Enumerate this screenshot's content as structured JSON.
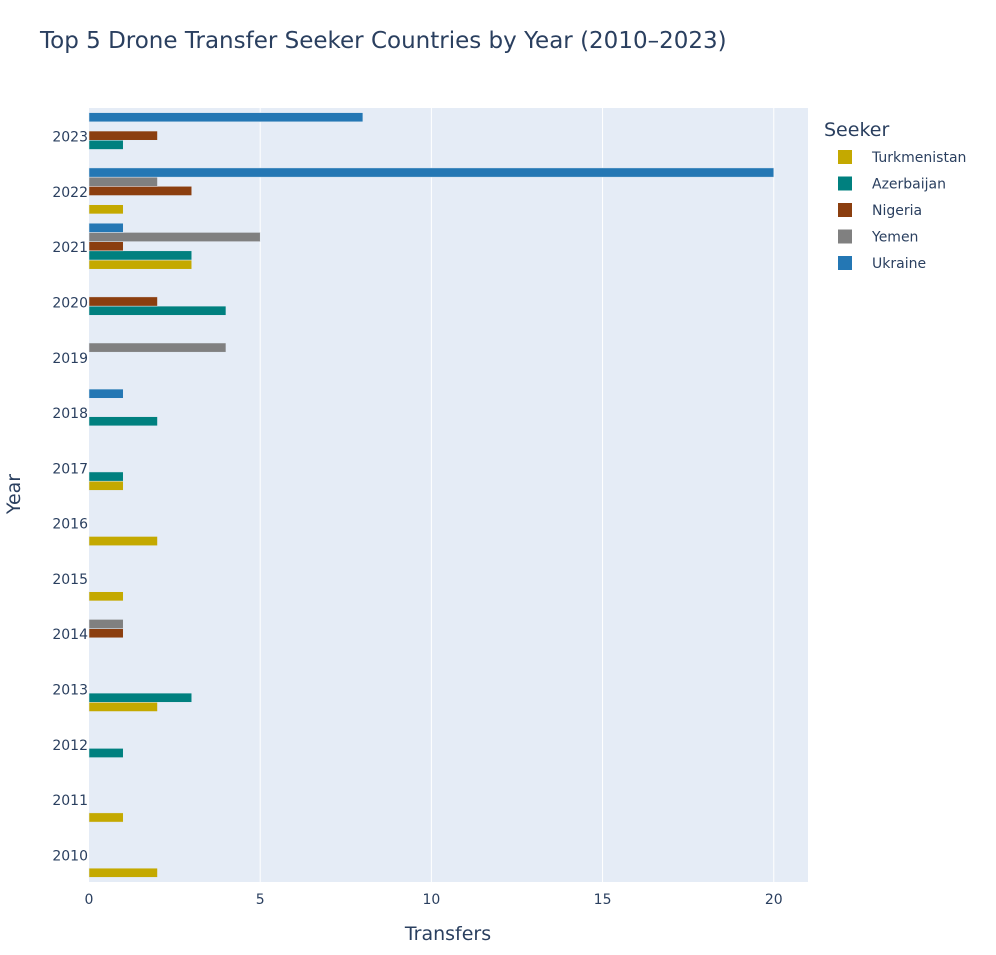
{
  "chart_data": {
    "type": "bar",
    "orientation": "horizontal",
    "title": "Top 5 Drone Transfer Seeker Countries by Year (2010–2023)",
    "xlabel": "Transfers",
    "ylabel": "Year",
    "xlim": [
      0,
      21
    ],
    "x_ticks": [
      0,
      5,
      10,
      15,
      20
    ],
    "legend_title": "Seeker",
    "legend_position": "right",
    "categories": [
      "2010",
      "2011",
      "2012",
      "2013",
      "2014",
      "2015",
      "2016",
      "2017",
      "2018",
      "2019",
      "2020",
      "2021",
      "2022",
      "2023"
    ],
    "series": [
      {
        "name": "Turkmenistan",
        "color": "#c4a900",
        "values": [
          2,
          1,
          0,
          2,
          0,
          1,
          2,
          1,
          0,
          0,
          0,
          3,
          1,
          0
        ]
      },
      {
        "name": "Azerbaijan",
        "color": "#00807f",
        "values": [
          0,
          0,
          1,
          3,
          0,
          0,
          0,
          1,
          2,
          0,
          4,
          3,
          0,
          1
        ]
      },
      {
        "name": "Nigeria",
        "color": "#8b3e0f",
        "values": [
          0,
          0,
          0,
          0,
          1,
          0,
          0,
          0,
          0,
          0,
          2,
          1,
          3,
          2
        ]
      },
      {
        "name": "Yemen",
        "color": "#808080",
        "values": [
          0,
          0,
          0,
          0,
          1,
          0,
          0,
          0,
          0,
          4,
          0,
          5,
          2,
          0
        ]
      },
      {
        "name": "Ukraine",
        "color": "#2477b4",
        "values": [
          0,
          0,
          0,
          0,
          0,
          0,
          0,
          0,
          1,
          0,
          0,
          1,
          20,
          8
        ]
      }
    ],
    "grid": true,
    "plot_background": "#e5ecf6"
  }
}
